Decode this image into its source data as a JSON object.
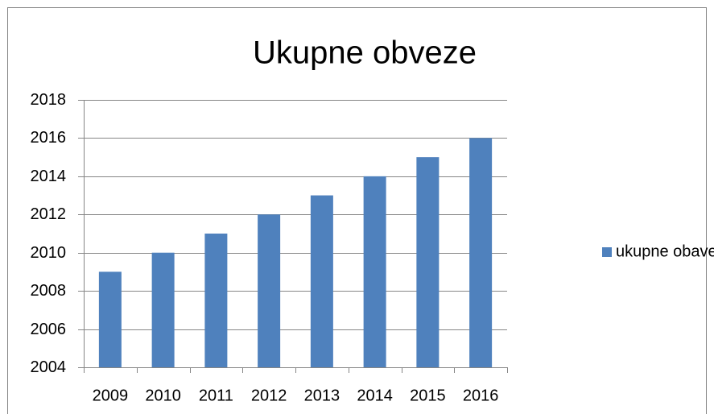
{
  "chart_data": {
    "type": "bar",
    "title": "Ukupne obveze",
    "categories": [
      "2009",
      "2010",
      "2011",
      "2012",
      "2013",
      "2014",
      "2015",
      "2016"
    ],
    "series": [
      {
        "name": "ukupne obaveze",
        "color": "#4f81bd",
        "values": [
          2009,
          2010,
          2011,
          2012,
          2013,
          2014,
          2015,
          2016
        ]
      }
    ],
    "ylim": [
      2004,
      2018
    ],
    "yticks": [
      2004,
      2006,
      2008,
      2010,
      2012,
      2014,
      2016,
      2018
    ],
    "grid": true,
    "legend": "right"
  }
}
